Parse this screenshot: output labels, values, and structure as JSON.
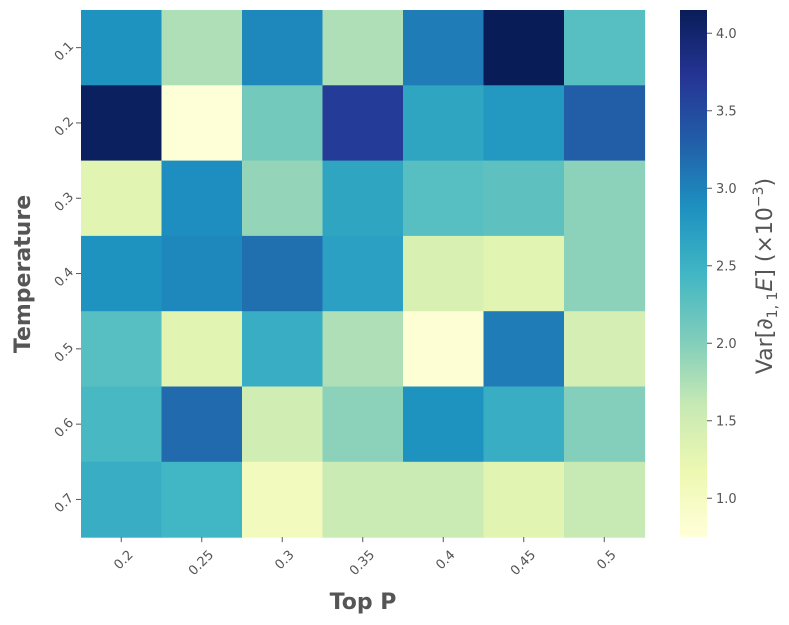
{
  "chart_data": {
    "type": "heatmap",
    "xlabel": "Top P",
    "ylabel": "Temperature",
    "x": [
      "0.2",
      "0.25",
      "0.3",
      "0.35",
      "0.4",
      "0.45",
      "0.5"
    ],
    "y": [
      "0.1",
      "0.2",
      "0.3",
      "0.4",
      "0.5",
      "0.6",
      "0.7"
    ],
    "values": [
      [
        2.85,
        1.75,
        2.95,
        1.75,
        3.05,
        4.15,
        2.3
      ],
      [
        4.1,
        0.78,
        2.1,
        3.65,
        2.65,
        2.8,
        3.3
      ],
      [
        1.3,
        2.9,
        1.9,
        2.65,
        2.3,
        2.25,
        1.95
      ],
      [
        2.85,
        2.95,
        3.15,
        2.7,
        1.4,
        1.3,
        1.95
      ],
      [
        2.3,
        1.3,
        2.55,
        1.75,
        0.8,
        3.05,
        1.45
      ],
      [
        2.4,
        3.2,
        1.5,
        1.95,
        2.85,
        2.55,
        2.0
      ],
      [
        2.55,
        2.45,
        1.05,
        1.55,
        1.55,
        1.3,
        1.6
      ]
    ],
    "colorbar": {
      "label": "Var[∂1,1E] (×10⁻³)",
      "label_parts": {
        "prefix": "Var[",
        "partial": "∂",
        "sub": "1, 1",
        "var": "E",
        "bracket_close": "]",
        "factor_open": " (×10",
        "exp": "−3",
        "factor_close": ")"
      },
      "ticks": [
        "1.0",
        "1.5",
        "2.0",
        "2.5",
        "3.0",
        "3.5",
        "4.0"
      ],
      "tick_values": [
        1.0,
        1.5,
        2.0,
        2.5,
        3.0,
        3.5,
        4.0
      ],
      "range": [
        0.75,
        4.15
      ],
      "colormap": "YlGnBu"
    }
  }
}
